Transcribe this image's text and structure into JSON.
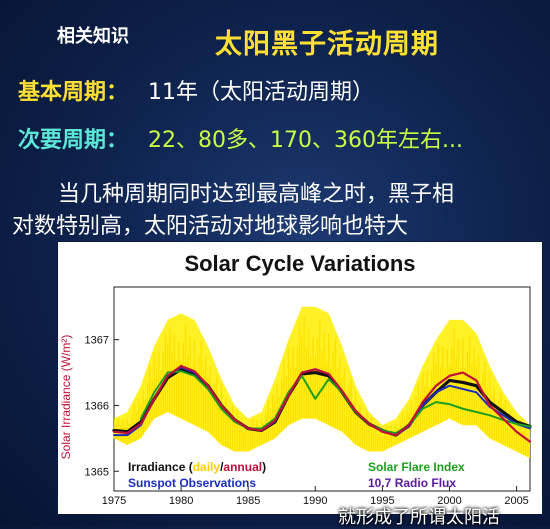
{
  "slide": {
    "tag": "相关知识",
    "title": "太阳黑子活动周期",
    "basic_label": "基本周期：",
    "basic_value": "11年（太阳活动周期）",
    "secondary_label": "次要周期：",
    "secondary_value": "22、80多、170、360年左右...",
    "body_line1": "当几种周期同时达到最高峰之时，黑子相",
    "body_line2": "对数特别高，太阳活动对地球影响也特大",
    "caption": "就形成了所谓太阳活"
  },
  "colors": {
    "background": "#0f2450",
    "title": "#ffe033",
    "secondary_label": "#5ce7d6",
    "secondary_value": "#ccff44",
    "body_text": "#ffffff",
    "irradiance_annual": "#111111",
    "daily_band": "#ffee00",
    "sunspot": "#1a2fc0",
    "flare": "#1d9e1d",
    "radio": "#c0103a"
  },
  "chart_data": {
    "type": "line",
    "title": "Solar Cycle Variations",
    "ylabel": "Solar Irradiance (W/m²)",
    "xlabel": "",
    "xlim": [
      1975,
      2006
    ],
    "ylim": [
      1364.7,
      1367.8
    ],
    "xticks": [
      1975,
      1980,
      1985,
      1990,
      1995,
      2000,
      2005
    ],
    "yticks": [
      1365,
      1366,
      1367
    ],
    "grid": false,
    "legend": {
      "placement": "bottom",
      "irradiance_prefix": "Irradiance (",
      "daily_word": "daily",
      "slash": "/",
      "annual_word": "annual",
      "irradiance_suffix": ")",
      "sunspot": "Sunspot Observations",
      "flare": "Solar Flare Index",
      "radio": "10.7 Radio Flux"
    },
    "x": [
      1975,
      1976,
      1977,
      1978,
      1979,
      1980,
      1981,
      1982,
      1983,
      1984,
      1985,
      1986,
      1987,
      1988,
      1989,
      1990,
      1991,
      1992,
      1993,
      1994,
      1995,
      1996,
      1997,
      1998,
      1999,
      2000,
      2001,
      2002,
      2003,
      2004,
      2005,
      2006
    ],
    "daily_band": {
      "lower": [
        1365.5,
        1365.4,
        1365.5,
        1365.8,
        1365.9,
        1365.8,
        1365.7,
        1365.6,
        1365.4,
        1365.3,
        1365.3,
        1365.4,
        1365.5,
        1365.7,
        1365.8,
        1365.8,
        1365.7,
        1365.6,
        1365.4,
        1365.3,
        1365.3,
        1365.4,
        1365.5,
        1365.6,
        1365.7,
        1365.8,
        1365.7,
        1365.7,
        1365.5,
        1365.4,
        1365.3,
        1365.2
      ],
      "upper": [
        1365.8,
        1365.9,
        1366.3,
        1366.9,
        1367.3,
        1367.4,
        1367.3,
        1366.9,
        1366.4,
        1366.0,
        1365.8,
        1365.9,
        1366.4,
        1367.0,
        1367.5,
        1367.5,
        1367.4,
        1366.9,
        1366.3,
        1365.9,
        1365.7,
        1365.8,
        1366.1,
        1366.6,
        1367.0,
        1367.3,
        1367.3,
        1367.1,
        1366.6,
        1366.2,
        1365.9,
        1365.7
      ]
    },
    "series": [
      {
        "key": "irradiance",
        "name": "Irradiance (annual)",
        "color": "#111111",
        "width": 3.2,
        "values": [
          1365.62,
          1365.6,
          1365.75,
          1366.1,
          1366.42,
          1366.55,
          1366.48,
          1366.3,
          1366.0,
          1365.78,
          1365.65,
          1365.62,
          1365.75,
          1366.15,
          1366.48,
          1366.5,
          1366.45,
          1366.2,
          1365.9,
          1365.72,
          1365.62,
          1365.55,
          1365.7,
          1366.0,
          1366.2,
          1366.38,
          1366.35,
          1366.3,
          1366.05,
          1365.9,
          1365.75,
          1365.68
        ]
      },
      {
        "key": "sunspot",
        "name": "Sunspot Observations",
        "color": "#1a2fc0",
        "width": 2,
        "values": [
          1365.55,
          1365.55,
          1365.7,
          1366.1,
          1366.45,
          1366.58,
          1366.5,
          1366.3,
          1366.0,
          1365.78,
          1365.65,
          1365.62,
          1365.76,
          1366.15,
          1366.5,
          1366.55,
          1366.48,
          1366.22,
          1365.92,
          1365.72,
          1365.62,
          1365.55,
          1365.68,
          1366.0,
          1366.2,
          1366.3,
          1366.25,
          1366.2,
          1365.98,
          1365.85,
          1365.72,
          1365.65
        ]
      },
      {
        "key": "flare",
        "name": "Solar Flare Index",
        "color": "#1d9e1d",
        "width": 2,
        "values": [
          null,
          null,
          1365.8,
          1366.2,
          1366.5,
          1366.52,
          1366.45,
          1366.25,
          1365.95,
          1365.75,
          1365.65,
          1365.65,
          1365.8,
          1366.2,
          1366.45,
          1366.1,
          1366.4,
          1366.2,
          1365.9,
          1365.72,
          1365.62,
          1365.58,
          1365.7,
          1365.95,
          1366.05,
          1366.02,
          1365.95,
          1365.9,
          1365.85,
          1365.78,
          1365.72,
          1365.68
        ]
      },
      {
        "key": "radio",
        "name": "10.7 Radio Flux",
        "color": "#c0103a",
        "width": 2.2,
        "values": [
          1365.6,
          1365.58,
          1365.72,
          1366.1,
          1366.45,
          1366.6,
          1366.52,
          1366.3,
          1366.0,
          1365.78,
          1365.65,
          1365.62,
          1365.77,
          1366.15,
          1366.5,
          1366.55,
          1366.48,
          1366.22,
          1365.92,
          1365.72,
          1365.6,
          1365.55,
          1365.7,
          1366.05,
          1366.3,
          1366.45,
          1366.5,
          1366.38,
          1366.0,
          1365.8,
          1365.6,
          1365.45
        ]
      }
    ]
  }
}
